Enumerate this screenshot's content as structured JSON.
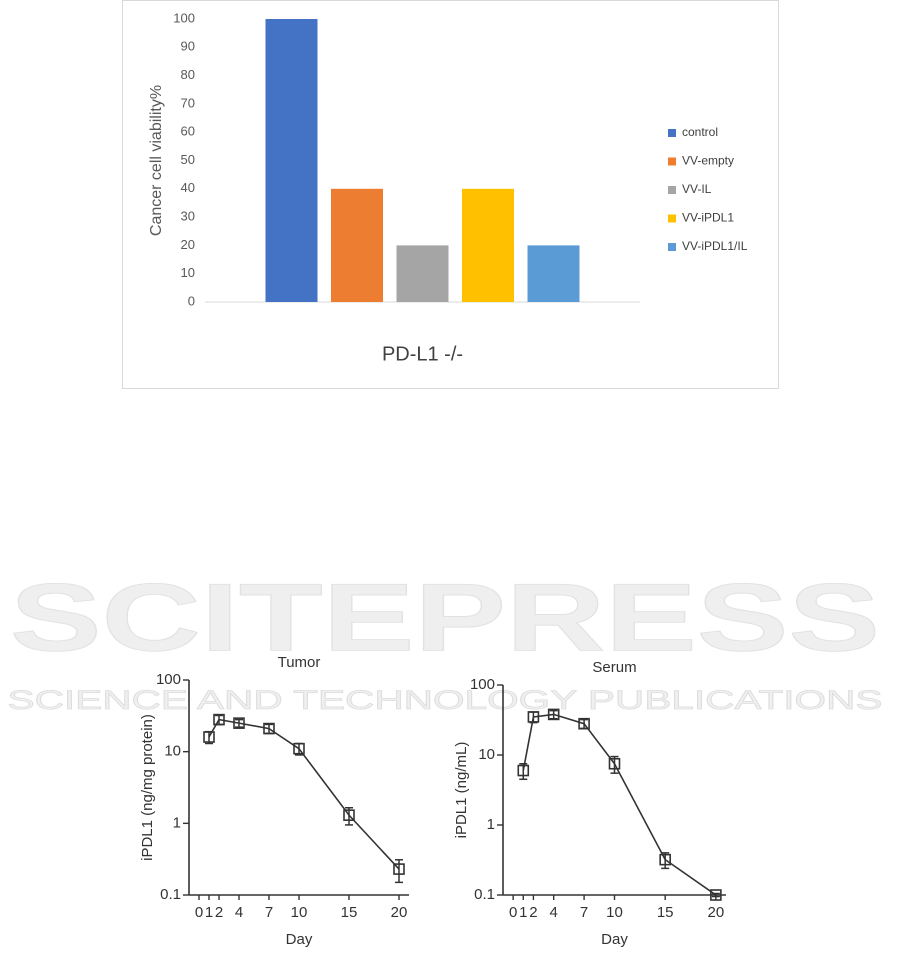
{
  "watermark": {
    "title": "SCITEPRESS",
    "subtitle": "SCIENCE AND TECHNOLOGY PUBLICATIONS"
  },
  "chart_data": [
    {
      "type": "bar",
      "ylabel": "Cancer cell viability%",
      "categories": [
        "PD-L1 -/-"
      ],
      "series": [
        {
          "name": "control",
          "color": "#4472c4",
          "values": [
            100
          ]
        },
        {
          "name": "VV-empty",
          "color": "#ed7d31",
          "values": [
            40
          ]
        },
        {
          "name": "VV-IL",
          "color": "#a5a5a5",
          "values": [
            20
          ]
        },
        {
          "name": "VV-iPDL1",
          "color": "#ffc000",
          "values": [
            40
          ]
        },
        {
          "name": "VV-iPDL1/IL",
          "color": "#5b9bd5",
          "values": [
            20
          ]
        }
      ],
      "ylim": [
        0,
        100
      ],
      "yticks": [
        0,
        10,
        20,
        30,
        40,
        50,
        60,
        70,
        80,
        90,
        100
      ],
      "legend": "right",
      "grid": false
    },
    {
      "type": "line",
      "title": "Tumor",
      "xlabel": "Day",
      "ylabel": "iPDL1 (ng/mg protein)",
      "x": [
        1,
        2,
        4,
        7,
        10,
        15,
        20
      ],
      "series": [
        {
          "color": "#333333",
          "values": [
            16,
            28,
            25,
            21,
            11,
            1.3,
            0.23
          ],
          "errors": [
            3,
            4,
            3,
            3,
            2,
            0.35,
            0.08
          ]
        }
      ],
      "xlim": [
        -1,
        21
      ],
      "xticks": [
        0,
        1,
        2,
        4,
        7,
        10,
        15,
        20
      ],
      "ylim": [
        0.1,
        100
      ],
      "yticks": [
        0.1,
        1,
        10,
        100
      ],
      "yscale": "log"
    },
    {
      "type": "line",
      "title": "Serum",
      "xlabel": "Day",
      "ylabel": "iPDL1 (ng/mL)",
      "x": [
        1,
        2,
        4,
        7,
        10,
        15,
        20
      ],
      "series": [
        {
          "color": "#333333",
          "values": [
            6,
            35,
            38,
            28,
            7.5,
            0.32,
            0.1
          ],
          "errors": [
            1.5,
            6,
            5,
            4,
            2,
            0.08,
            0.005
          ]
        }
      ],
      "xlim": [
        -1,
        21
      ],
      "xticks": [
        0,
        1,
        2,
        4,
        7,
        10,
        15,
        20
      ],
      "ylim": [
        0.1,
        100
      ],
      "yticks": [
        0.1,
        1,
        10,
        100
      ],
      "yscale": "log"
    }
  ]
}
